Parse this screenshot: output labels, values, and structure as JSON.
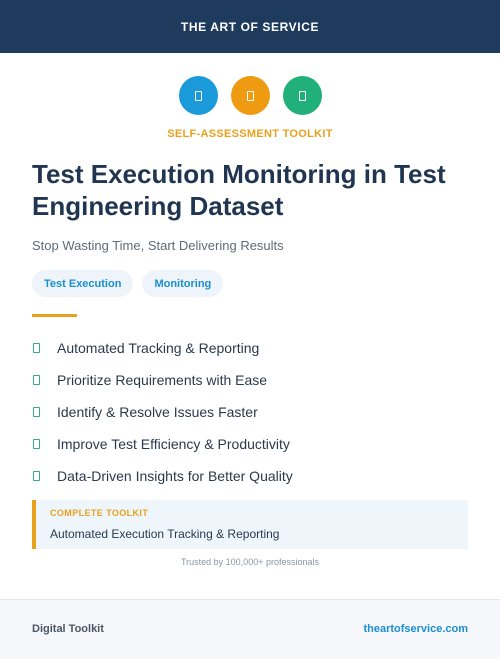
{
  "header": {
    "brand": "THE ART OF SERVICE"
  },
  "icons": [
    {
      "name": "document-icon",
      "color": "#1a9ad9"
    },
    {
      "name": "document-icon",
      "color": "#ee9b12"
    },
    {
      "name": "document-icon",
      "color": "#22b07a"
    }
  ],
  "kicker": "SELF-ASSESSMENT TOOLKIT",
  "title": "Test Execution Monitoring in Test Engineering Dataset",
  "subtitle": "Stop Wasting Time, Start Delivering Results",
  "tags": [
    "Test Execution",
    "Monitoring"
  ],
  "features": [
    "Automated Tracking & Reporting",
    "Prioritize Requirements with Ease",
    "Identify & Resolve Issues Faster",
    "Improve Test Efficiency & Productivity",
    "Data-Driven Insights for Better Quality"
  ],
  "feature_icon": "check-icon",
  "callout": {
    "caption": "COMPLETE TOOLKIT",
    "text": "Automated Execution Tracking & Reporting"
  },
  "trusted": "Trusted by 100,000+ professionals",
  "footer": {
    "left": "Digital Toolkit",
    "right": "theartofservice.com"
  },
  "colors": {
    "navy": "#1e3a5c",
    "accent": "#e8a11c",
    "link": "#1a8fd1",
    "check": "#2bb27a"
  }
}
